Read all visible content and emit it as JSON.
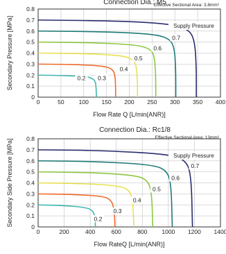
{
  "chart_data": [
    {
      "type": "line",
      "title": "Connection Dia.: M5",
      "area_note": "Effective Sectional Area: 3.8mm²",
      "xlabel": "Flow Rate Q [L/min(ANR)]",
      "ylabel": "Secondary Pressure [MPa]",
      "xlim": [
        0,
        400
      ],
      "ylim": [
        0,
        0.8
      ],
      "xticks": [
        "0",
        "50",
        "100",
        "150",
        "200",
        "250",
        "300",
        "350",
        "400"
      ],
      "yticks": [
        "0",
        "0.1",
        "0.2",
        "0.3",
        "0.4",
        "0.5",
        "0.6",
        "0.7",
        "0.8"
      ],
      "grid": true,
      "legend_label": "Supply Pressure",
      "legend_placement": "top-right",
      "series": [
        {
          "name": "0.2",
          "color": "#3fb8b0",
          "max_flow": 128,
          "drop_knee": 107,
          "points": [
            [
              0,
              0.2
            ],
            [
              50,
              0.197
            ],
            [
              100,
              0.188
            ],
            [
              115,
              0.178
            ],
            [
              125,
              0.15
            ],
            [
              127,
              0.1
            ],
            [
              128,
              0
            ]
          ],
          "label_x": 95,
          "label_y": 0.155
        },
        {
          "name": "0.3",
          "color": "#f06a2a",
          "max_flow": 170,
          "drop_knee": 150,
          "points": [
            [
              0,
              0.3
            ],
            [
              75,
              0.297
            ],
            [
              140,
              0.284
            ],
            [
              160,
              0.262
            ],
            [
              168,
              0.22
            ],
            [
              170,
              0.12
            ],
            [
              170,
              0
            ]
          ],
          "label_x": 140,
          "label_y": 0.155
        },
        {
          "name": "0.4",
          "color": "#e8e050",
          "max_flow": 218,
          "drop_knee": 195,
          "points": [
            [
              0,
              0.4
            ],
            [
              100,
              0.396
            ],
            [
              180,
              0.38
            ],
            [
              205,
              0.35
            ],
            [
              215,
              0.3
            ],
            [
              218,
              0.15
            ],
            [
              218,
              0
            ]
          ],
          "label_x": 188,
          "label_y": 0.235
        },
        {
          "name": "0.5",
          "color": "#8dc63f",
          "max_flow": 258,
          "drop_knee": 235,
          "points": [
            [
              0,
              0.5
            ],
            [
              120,
              0.495
            ],
            [
              215,
              0.475
            ],
            [
              245,
              0.44
            ],
            [
              255,
              0.38
            ],
            [
              258,
              0.2
            ],
            [
              258,
              0
            ]
          ],
          "label_x": 220,
          "label_y": 0.335
        },
        {
          "name": "0.6",
          "color": "#1f7a78",
          "max_flow": 302,
          "drop_knee": 275,
          "points": [
            [
              0,
              0.6
            ],
            [
              150,
              0.594
            ],
            [
              255,
              0.572
            ],
            [
              288,
              0.53
            ],
            [
              299,
              0.45
            ],
            [
              302,
              0.25
            ],
            [
              302,
              0
            ]
          ],
          "label_x": 262,
          "label_y": 0.425
        },
        {
          "name": "0.7",
          "color": "#2a2c6e",
          "max_flow": 347,
          "drop_knee": 320,
          "points": [
            [
              0,
              0.7
            ],
            [
              180,
              0.692
            ],
            [
              290,
              0.665
            ],
            [
              330,
              0.615
            ],
            [
              343,
              0.52
            ],
            [
              347,
              0.3
            ],
            [
              347,
              0
            ]
          ],
          "label_x": 303,
          "label_y": 0.52
        }
      ]
    },
    {
      "type": "line",
      "title": "Connection Dia.: Rc1/8",
      "area_note": "Effective Sectional Area: 13mm²",
      "xlabel": "Flow RateQ [L/min(ANR)]",
      "ylabel": "Secondary Side Pressure [MPa]",
      "xlim": [
        0,
        1400
      ],
      "ylim": [
        0,
        0.8
      ],
      "xticks": [
        "0",
        "200",
        "400",
        "600",
        "800",
        "1000",
        "1200",
        "1400"
      ],
      "yticks": [
        "0",
        "0.1",
        "0.2",
        "0.3",
        "0.4",
        "0.5",
        "0.6",
        "0.7",
        "0.8"
      ],
      "grid": true,
      "legend_label": "Supply Pressure",
      "legend_placement": "top-right",
      "series": [
        {
          "name": "0.2",
          "color": "#3fb8b0",
          "max_flow": 440,
          "points": [
            [
              0,
              0.2
            ],
            [
              200,
              0.195
            ],
            [
              380,
              0.175
            ],
            [
              425,
              0.14
            ],
            [
              437,
              0.08
            ],
            [
              440,
              0
            ]
          ],
          "label_x": 460,
          "label_y": 0.055
        },
        {
          "name": "0.3",
          "color": "#f06a2a",
          "max_flow": 590,
          "points": [
            [
              0,
              0.3
            ],
            [
              250,
              0.296
            ],
            [
              500,
              0.28
            ],
            [
              565,
              0.24
            ],
            [
              585,
              0.15
            ],
            [
              590,
              0
            ]
          ],
          "label_x": 610,
          "label_y": 0.125
        },
        {
          "name": "0.4",
          "color": "#e8e050",
          "max_flow": 735,
          "points": [
            [
              0,
              0.4
            ],
            [
              320,
              0.395
            ],
            [
              620,
              0.375
            ],
            [
              705,
              0.33
            ],
            [
              728,
              0.22
            ],
            [
              735,
              0
            ]
          ],
          "label_x": 760,
          "label_y": 0.225
        },
        {
          "name": "0.5",
          "color": "#8dc63f",
          "max_flow": 880,
          "points": [
            [
              0,
              0.5
            ],
            [
              380,
              0.495
            ],
            [
              750,
              0.47
            ],
            [
              845,
              0.42
            ],
            [
              873,
              0.3
            ],
            [
              880,
              0
            ]
          ],
          "label_x": 910,
          "label_y": 0.325
        },
        {
          "name": "0.6",
          "color": "#1f7a78",
          "max_flow": 1030,
          "points": [
            [
              0,
              0.6
            ],
            [
              450,
              0.594
            ],
            [
              880,
              0.565
            ],
            [
              990,
              0.51
            ],
            [
              1022,
              0.38
            ],
            [
              1030,
              0
            ]
          ],
          "label_x": 1055,
          "label_y": 0.425
        },
        {
          "name": "0.7",
          "color": "#2a2c6e",
          "max_flow": 1185,
          "points": [
            [
              0,
              0.7
            ],
            [
              500,
              0.694
            ],
            [
              1010,
              0.66
            ],
            [
              1140,
              0.6
            ],
            [
              1176,
              0.45
            ],
            [
              1185,
              0
            ]
          ],
          "label_x": 1205,
          "label_y": 0.535
        }
      ]
    }
  ]
}
